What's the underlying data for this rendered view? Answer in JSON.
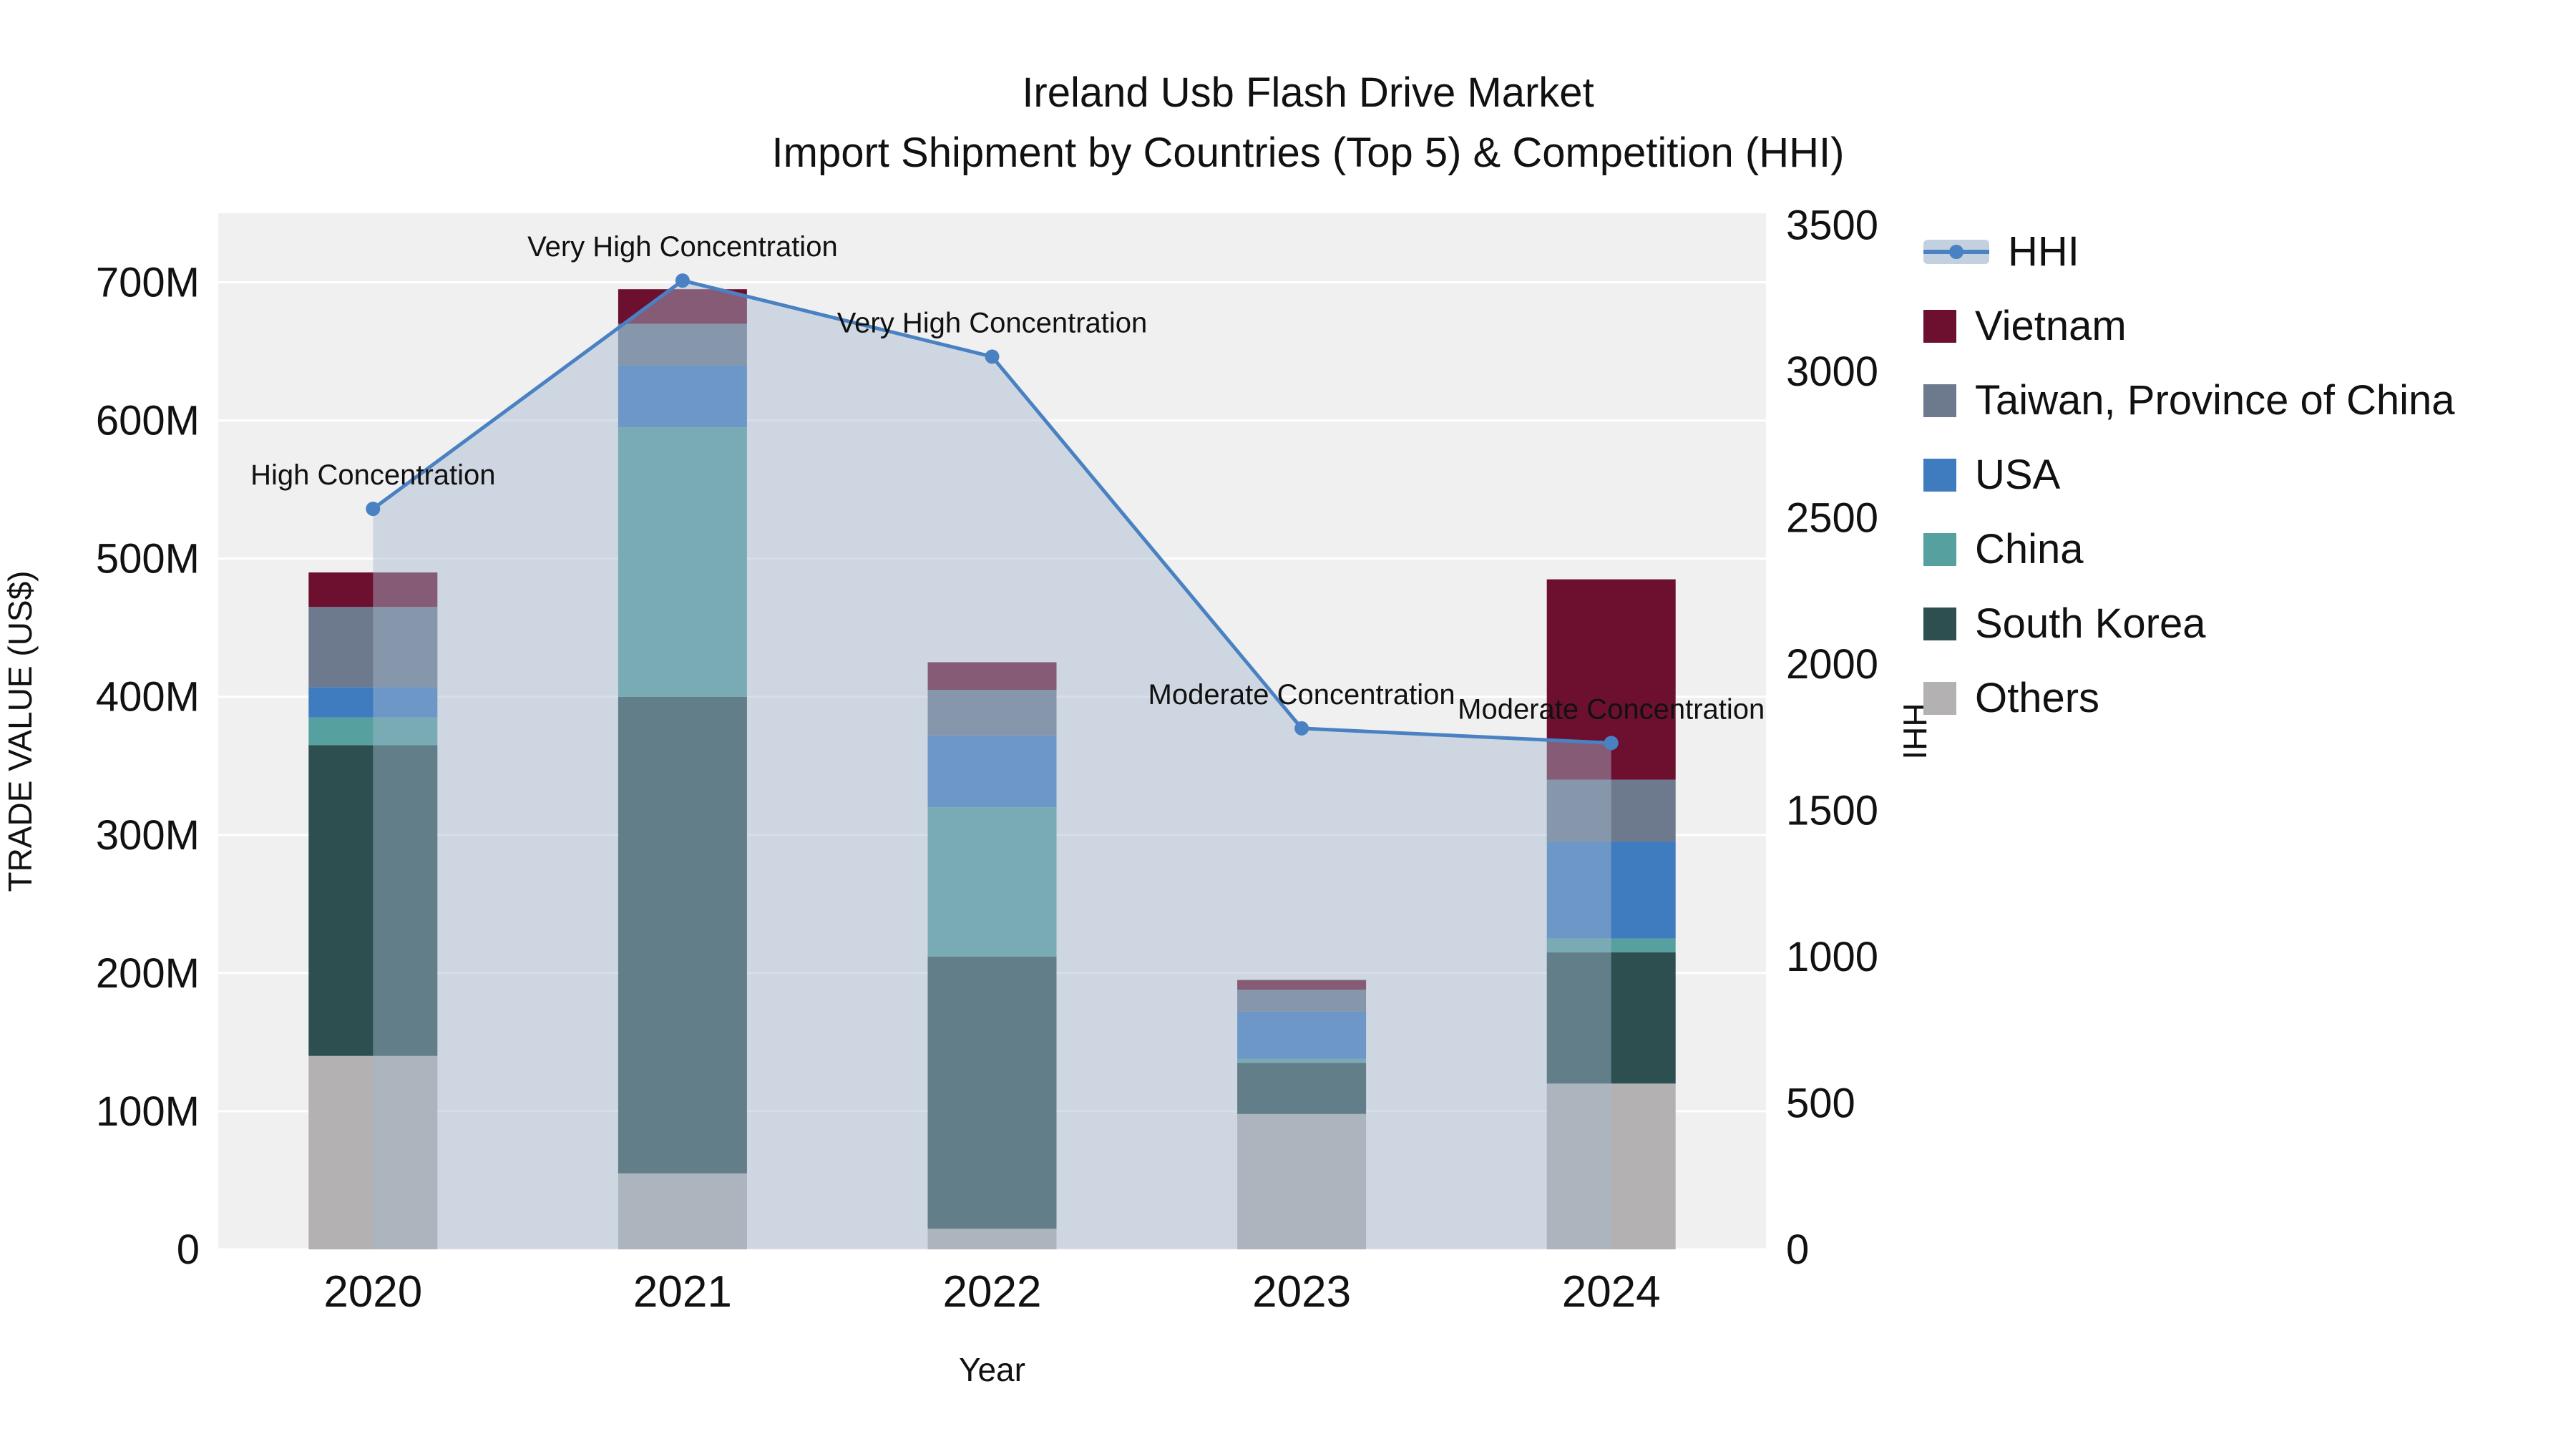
{
  "title": {
    "line1": "Ireland Usb Flash Drive Market",
    "line2": "Import Shipment by Countries (Top 5) & Competition (HHI)"
  },
  "chart_data": {
    "type": "bar",
    "subtype": "stacked-bar-with-line",
    "categories": [
      "2020",
      "2021",
      "2022",
      "2023",
      "2024"
    ],
    "xlabel": "Year",
    "ylabel_left": "TRADE VALUE (US$)",
    "ylabel_right": "HHI",
    "value_unit": "millions USD",
    "left_axis": {
      "max": 750,
      "tick_values": [
        0,
        100,
        200,
        300,
        400,
        500,
        600,
        700
      ],
      "tick_labels": [
        "0",
        "100M",
        "200M",
        "300M",
        "400M",
        "500M",
        "600M",
        "700M"
      ]
    },
    "right_axis": {
      "max": 3540,
      "tick_values": [
        0,
        500,
        1000,
        1500,
        2000,
        2500,
        3000,
        3500
      ],
      "tick_labels": [
        "0",
        "500",
        "1000",
        "1500",
        "2000",
        "2500",
        "3000",
        "3500"
      ]
    },
    "series": [
      {
        "name": "Others",
        "color": "#b3b1b1",
        "values": [
          140,
          55,
          15,
          98,
          120
        ]
      },
      {
        "name": "South Korea",
        "color": "#2d4f4f",
        "values": [
          225,
          345,
          197,
          37,
          95
        ]
      },
      {
        "name": "China",
        "color": "#57a0a0",
        "values": [
          20,
          195,
          108,
          3,
          10
        ]
      },
      {
        "name": "USA",
        "color": "#3e7cbf",
        "values": [
          22,
          45,
          52,
          34,
          70
        ]
      },
      {
        "name": "Taiwan, Province of China",
        "color": "#6d7a8e",
        "values": [
          58,
          30,
          33,
          16,
          45
        ]
      },
      {
        "name": "Vietnam",
        "color": "#6d102f",
        "values": [
          25,
          25,
          20,
          7,
          145
        ]
      }
    ],
    "hhi_line": {
      "name": "HHI",
      "color": "#4a81c2",
      "area_color": "#a3b8cf",
      "area_opacity": 0.45,
      "values": [
        2530,
        3310,
        3050,
        1780,
        1730
      ]
    },
    "annotations": [
      {
        "text": "High Concentration",
        "category_index": 0
      },
      {
        "text": "Very High Concentration",
        "category_index": 1
      },
      {
        "text": "Very High Concentration",
        "category_index": 2
      },
      {
        "text": "Moderate Concentration",
        "category_index": 3
      },
      {
        "text": "Moderate Concentration",
        "category_index": 4
      }
    ],
    "legend": [
      {
        "label": "HHI",
        "type": "line",
        "color": "#4a81c2"
      },
      {
        "label": "Vietnam",
        "type": "box",
        "color": "#6d102f"
      },
      {
        "label": "Taiwan, Province of China",
        "type": "box",
        "color": "#6d7a8e"
      },
      {
        "label": "USA",
        "type": "box",
        "color": "#3e7cbf"
      },
      {
        "label": "China",
        "type": "box",
        "color": "#57a0a0"
      },
      {
        "label": "South Korea",
        "type": "box",
        "color": "#2d4f4f"
      },
      {
        "label": "Others",
        "type": "box",
        "color": "#b3b1b1"
      }
    ],
    "plot_background": "#f0f0f0",
    "gridline_color": "#ffffff"
  }
}
